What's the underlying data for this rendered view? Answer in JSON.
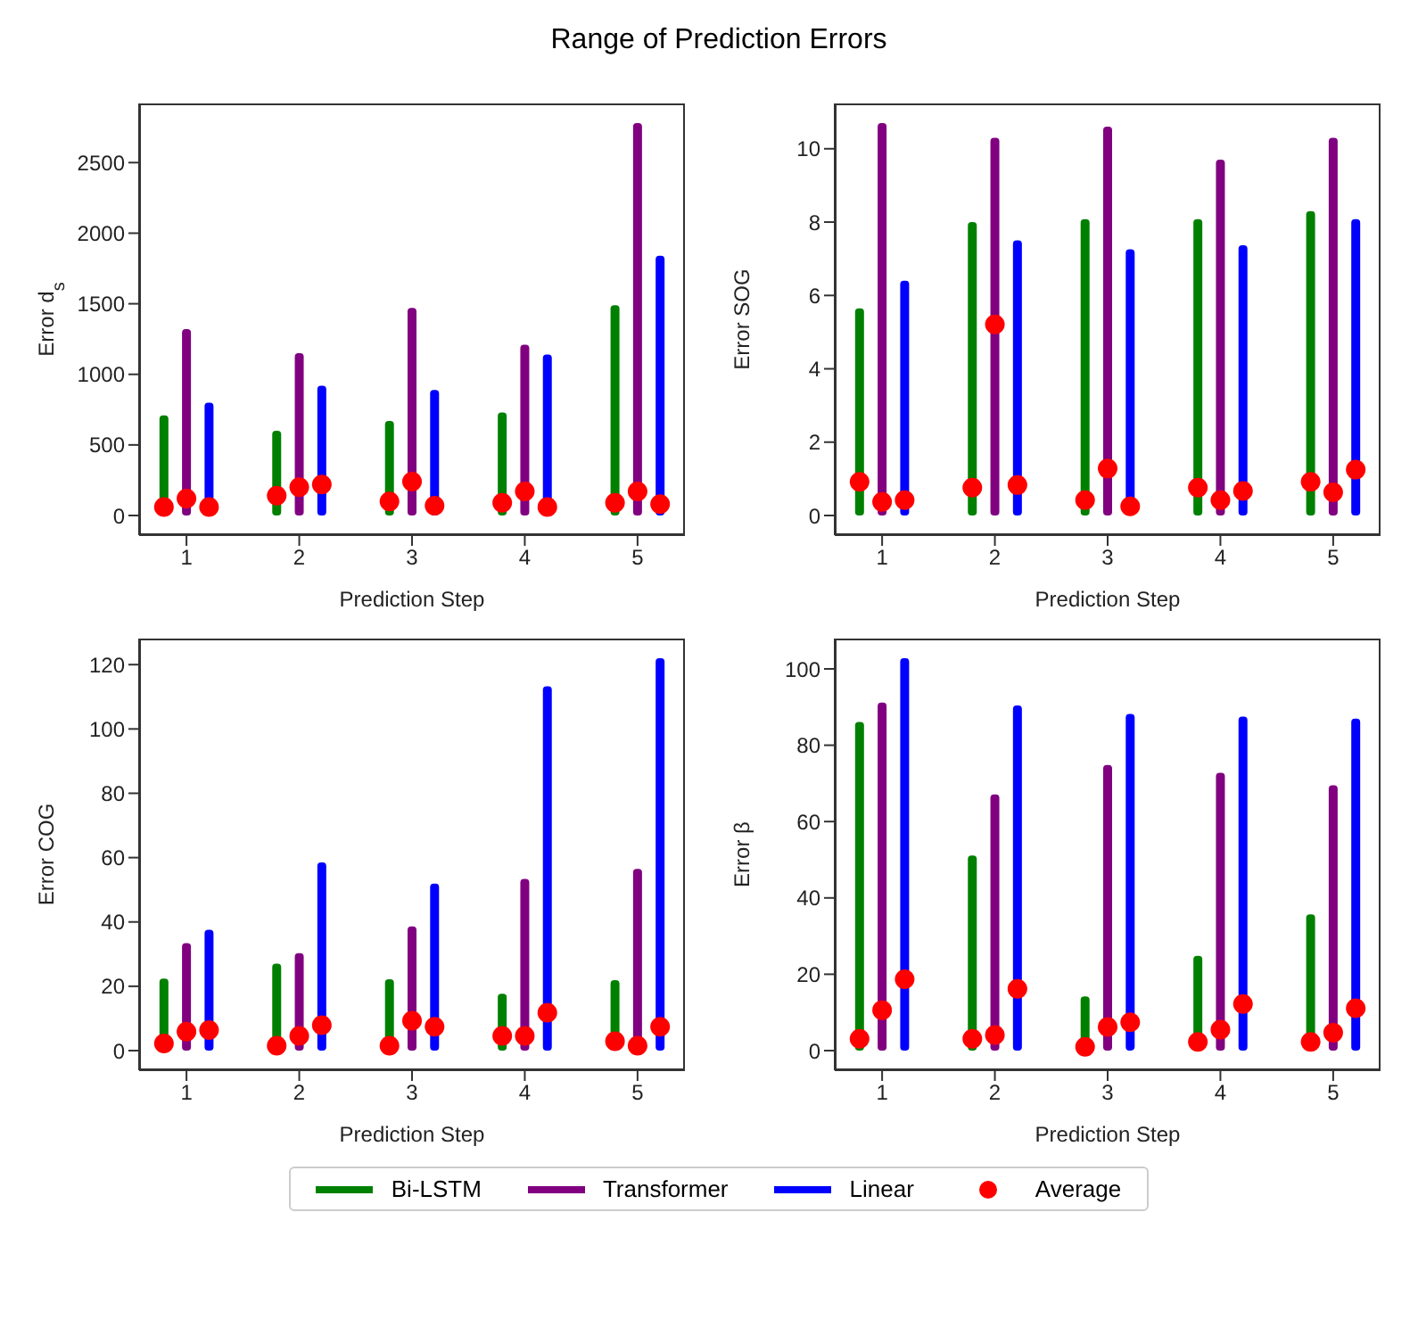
{
  "chart_data": [
    {
      "type": "bar",
      "title": "Range of Prediction Errors",
      "xlabel": "Prediction Step",
      "ylabel": "Error d$_{s}$",
      "legend": "bottom",
      "xlim": [
        0.58,
        5.42
      ],
      "xticks": [
        1,
        2,
        3,
        4,
        5
      ],
      "ylim": [
        -139,
        2919
      ],
      "yticks": [
        0,
        500,
        1000,
        1500,
        2000,
        2500
      ],
      "series": [
        {
          "name": "Bi-LSTM",
          "color": "#008000",
          "x": [
            0.8,
            1.8,
            2.8,
            3.8,
            4.8
          ],
          "values": [
            710,
            600,
            670,
            730,
            1490
          ]
        },
        {
          "name": "Transformer",
          "color": "#800080",
          "x": [
            1,
            2,
            3,
            4,
            5
          ],
          "values": [
            1320,
            1150,
            1470,
            1210,
            2780
          ]
        },
        {
          "name": "Linear",
          "color": "#0000ff",
          "x": [
            1.2,
            2.2,
            3.2,
            4.2,
            5.2
          ],
          "values": [
            800,
            920,
            890,
            1140,
            1840
          ]
        },
        {
          "name": "Average",
          "type": "scatter",
          "marker": "circle",
          "color": "#ff0000",
          "x": [
            0.8,
            1.8,
            2.8,
            3.8,
            4.8,
            1,
            2,
            3,
            4,
            5,
            1.2,
            2.2,
            3.2,
            4.2,
            5.2
          ],
          "values": [
            60,
            140,
            100,
            90,
            90,
            120,
            200,
            240,
            170,
            170,
            60,
            220,
            70,
            60,
            80
          ]
        }
      ]
    },
    {
      "type": "bar",
      "xlabel": "Prediction Step",
      "ylabel": "Error SOG",
      "xlim": [
        0.58,
        5.42
      ],
      "xticks": [
        1,
        2,
        3,
        4,
        5
      ],
      "ylim": [
        -0.535,
        11.235
      ],
      "yticks": [
        0,
        2,
        4,
        6,
        8,
        10
      ],
      "series": [
        {
          "color": "#008000",
          "x": [
            0.8,
            1.8,
            2.8,
            3.8,
            4.8
          ],
          "values": [
            5.65,
            8.0,
            8.08,
            8.08,
            8.3
          ]
        },
        {
          "color": "#800080",
          "x": [
            1,
            2,
            3,
            4,
            5
          ],
          "values": [
            10.7,
            10.3,
            10.6,
            9.7,
            10.3
          ]
        },
        {
          "color": "#0000ff",
          "x": [
            1.2,
            2.2,
            3.2,
            4.2,
            5.2
          ],
          "values": [
            6.4,
            7.5,
            7.26,
            7.37,
            8.08
          ]
        },
        {
          "type": "scatter",
          "marker": "circle",
          "color": "#ff0000",
          "x": [
            0.8,
            1.8,
            2.8,
            3.8,
            4.8,
            1,
            2,
            3,
            4,
            5,
            1.2,
            2.2,
            3.2,
            4.2,
            5.2
          ],
          "values": [
            0.92,
            0.76,
            0.42,
            0.76,
            0.92,
            0.37,
            5.21,
            1.28,
            0.42,
            0.63,
            0.42,
            0.83,
            0.25,
            0.67,
            1.25
          ]
        }
      ]
    },
    {
      "type": "bar",
      "xlabel": "Prediction Step",
      "ylabel": "Error COG",
      "xlim": [
        0.58,
        5.42
      ],
      "xticks": [
        1,
        2,
        3,
        4,
        5
      ],
      "ylim": [
        -6.1,
        128.1
      ],
      "yticks": [
        0,
        20,
        40,
        60,
        80,
        100,
        120
      ],
      "series": [
        {
          "color": "#008000",
          "x": [
            0.8,
            1.8,
            2.8,
            3.8,
            4.8
          ],
          "values": [
            22.4,
            27,
            22.2,
            17.7,
            21.9
          ]
        },
        {
          "color": "#800080",
          "x": [
            1,
            2,
            3,
            4,
            5
          ],
          "values": [
            33.4,
            30.3,
            38.6,
            53.4,
            56.5
          ]
        },
        {
          "color": "#0000ff",
          "x": [
            1.2,
            2.2,
            3.2,
            4.2,
            5.2
          ],
          "values": [
            37.6,
            58.5,
            51.9,
            113.3,
            122
          ]
        },
        {
          "type": "scatter",
          "marker": "circle",
          "color": "#ff0000",
          "x": [
            0.8,
            1.8,
            2.8,
            3.8,
            4.8,
            1,
            2,
            3,
            4,
            5,
            1.2,
            2.2,
            3.2,
            4.2,
            5.2
          ],
          "values": [
            2.2,
            1.5,
            1.5,
            4.6,
            2.9,
            5.9,
            4.6,
            9.3,
            4.6,
            1.5,
            6.4,
            7.9,
            7.4,
            11.8,
            7.4
          ]
        }
      ]
    },
    {
      "type": "bar",
      "xlabel": "Prediction Step",
      "ylabel": "Error β",
      "xlim": [
        0.58,
        5.42
      ],
      "xticks": [
        1,
        2,
        3,
        4,
        5
      ],
      "ylim": [
        -5.14,
        107.94
      ],
      "yticks": [
        0,
        20,
        40,
        60,
        80,
        100
      ],
      "series": [
        {
          "color": "#008000",
          "x": [
            0.8,
            1.8,
            2.8,
            3.8,
            4.8
          ],
          "values": [
            86.1,
            51.1,
            14.2,
            24.8,
            35.7
          ]
        },
        {
          "color": "#800080",
          "x": [
            1,
            2,
            3,
            4,
            5
          ],
          "values": [
            91.2,
            67.1,
            74.8,
            72.8,
            69.5
          ]
        },
        {
          "color": "#0000ff",
          "x": [
            1.2,
            2.2,
            3.2,
            4.2,
            5.2
          ],
          "values": [
            102.8,
            90.4,
            88.2,
            87.5,
            87.0
          ]
        },
        {
          "type": "scatter",
          "marker": "circle",
          "color": "#ff0000",
          "x": [
            0.8,
            1.8,
            2.8,
            3.8,
            4.8,
            1,
            2,
            3,
            4,
            5,
            1.2,
            2.2,
            3.2,
            4.2,
            5.2
          ],
          "values": [
            3.1,
            3.1,
            1.0,
            2.3,
            2.3,
            10.6,
            4.1,
            6.2,
            5.5,
            4.7,
            18.7,
            16.2,
            7.4,
            12.2,
            11.1
          ]
        }
      ]
    }
  ]
}
